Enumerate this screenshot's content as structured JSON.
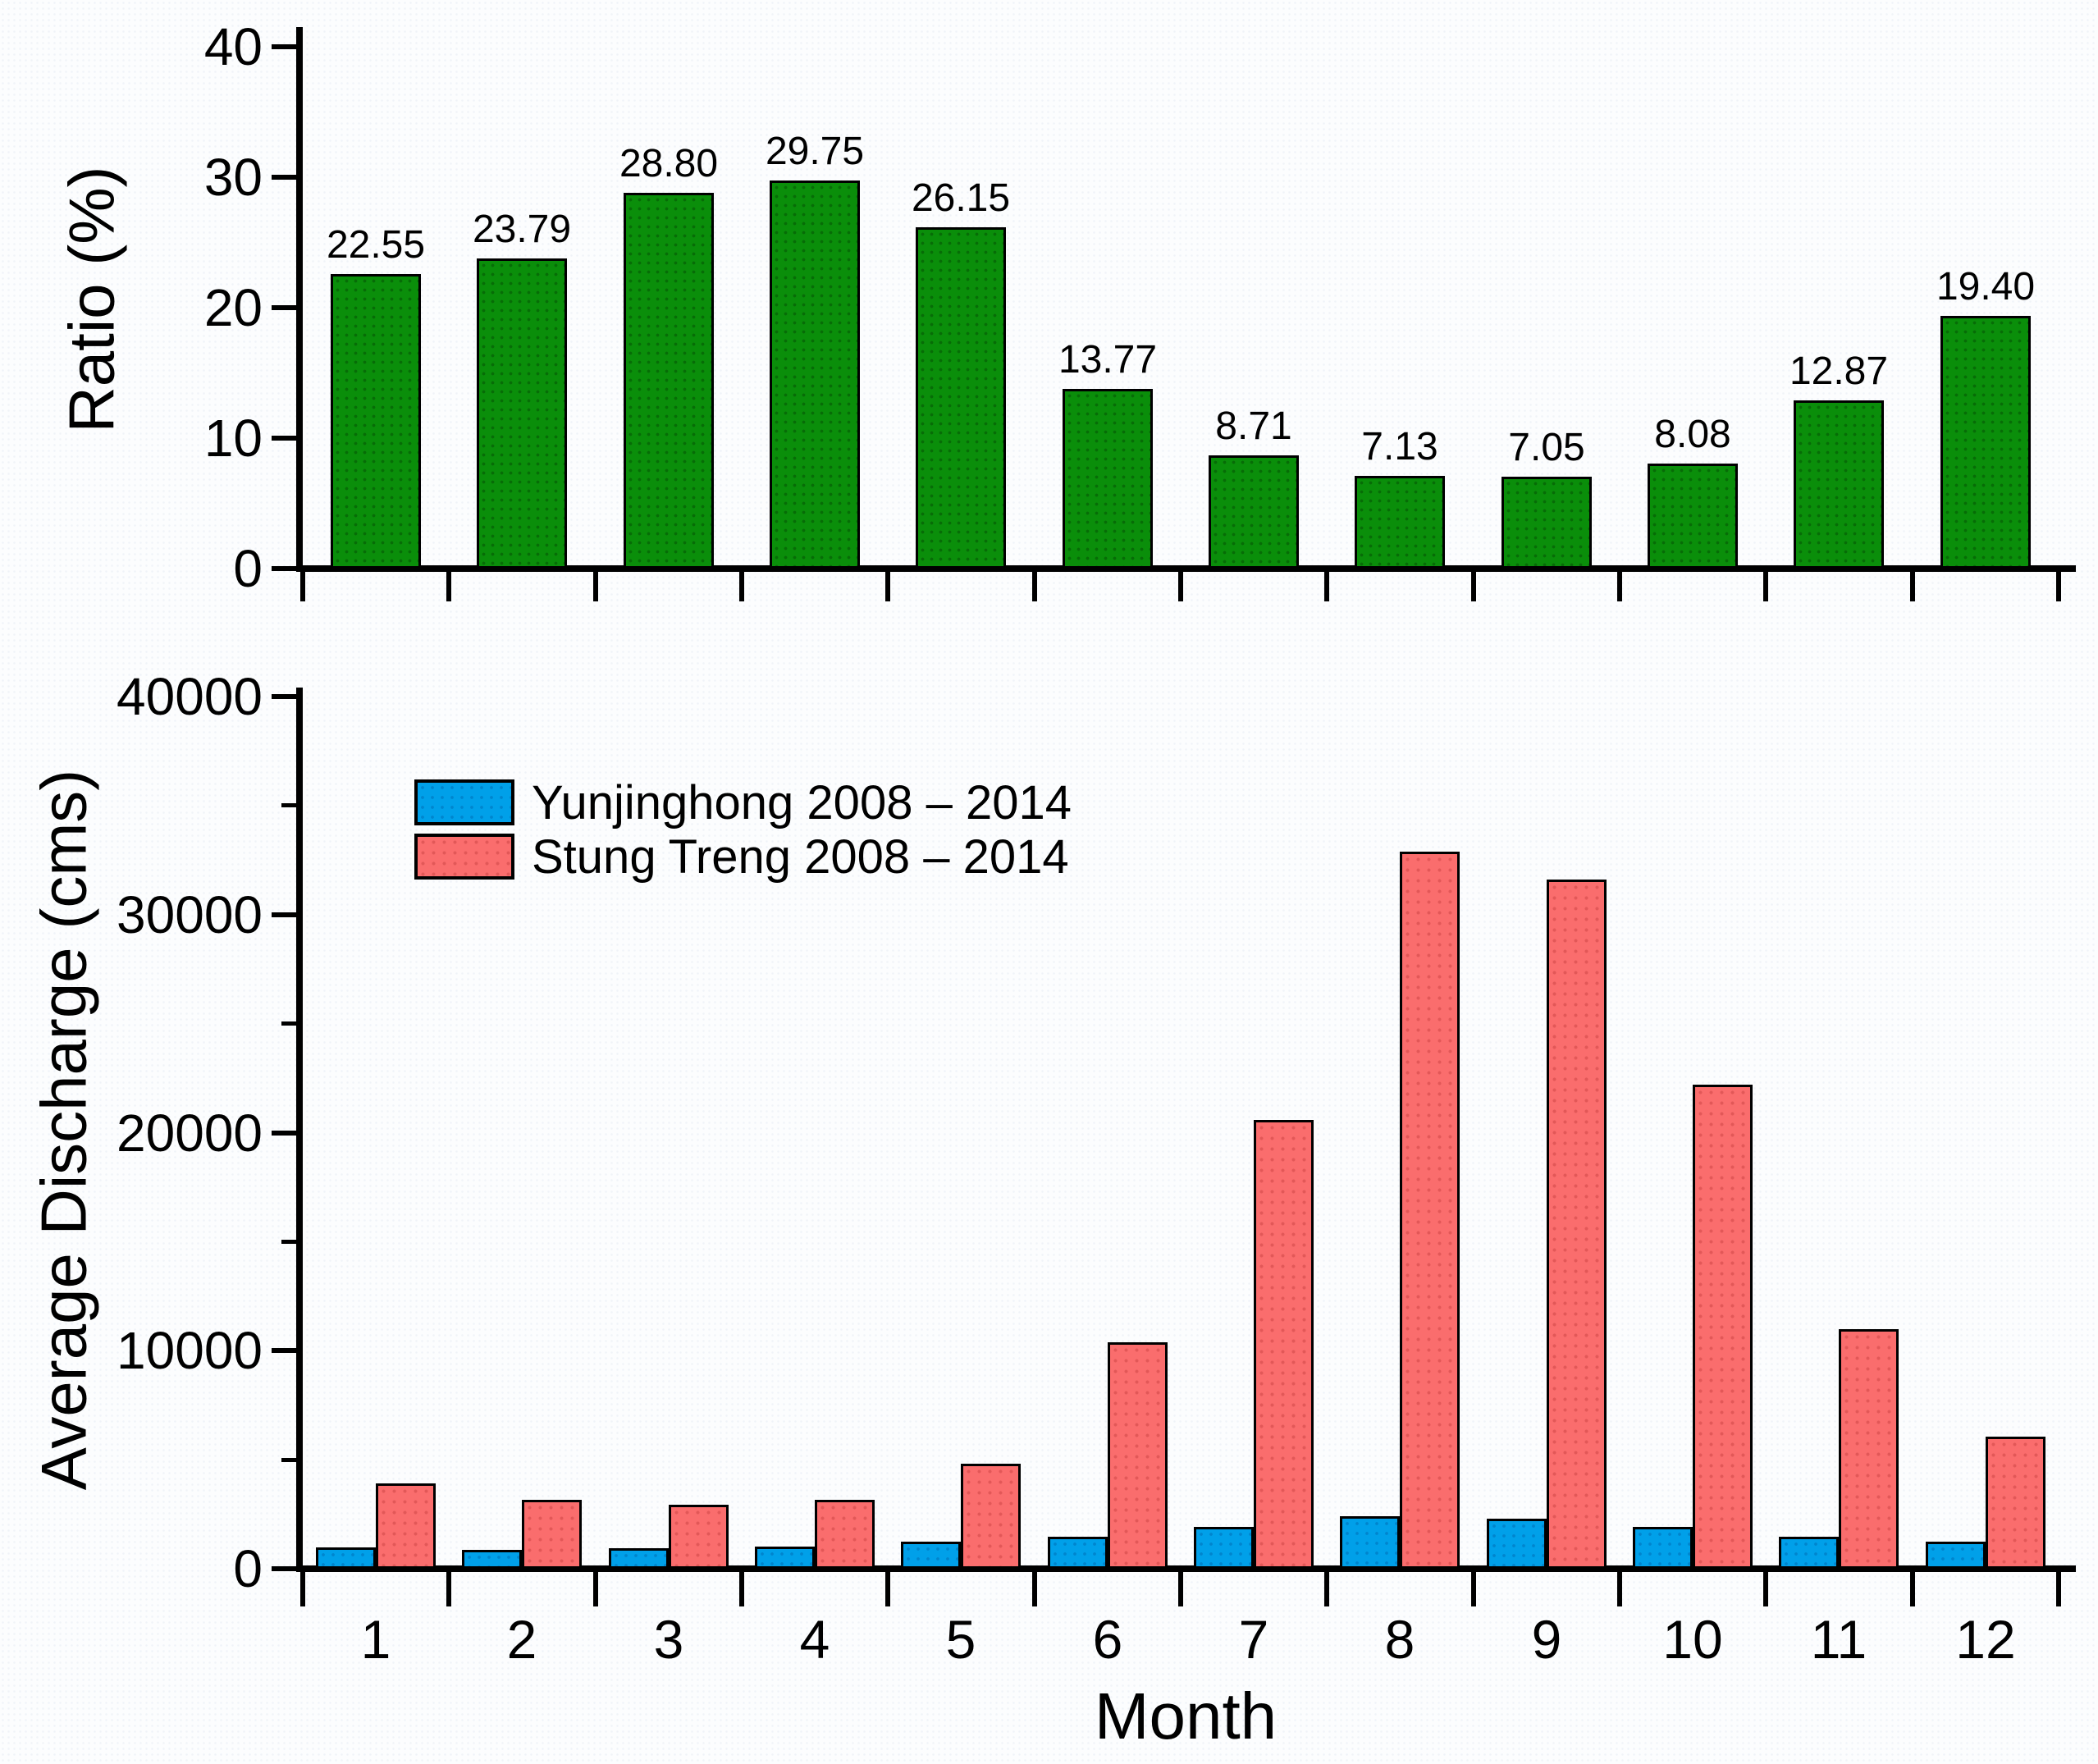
{
  "figure": {
    "background": "#fcfdfe",
    "axis_color": "#000000"
  },
  "chart_data": [
    {
      "type": "bar",
      "title": "",
      "ylabel": "Ratio (%)",
      "xlabel": "",
      "categories": [
        "1",
        "2",
        "3",
        "4",
        "5",
        "6",
        "7",
        "8",
        "9",
        "10",
        "11",
        "12"
      ],
      "values": [
        22.55,
        23.79,
        28.8,
        29.75,
        26.15,
        13.77,
        8.71,
        7.13,
        7.05,
        8.08,
        12.87,
        19.4
      ],
      "value_labels": [
        "22.55",
        "23.79",
        "28.80",
        "29.75",
        "26.15",
        "13.77",
        "8.71",
        "7.13",
        "7.05",
        "8.08",
        "12.87",
        "19.40"
      ],
      "ylim": [
        0,
        40
      ],
      "yticks": [
        0,
        10,
        20,
        30,
        40
      ],
      "bar_color": "#0a8e0a",
      "bar_border_color": "#000000",
      "grid": false,
      "x_tick_labels_shown": false,
      "legend_position": "none"
    },
    {
      "type": "grouped-bar",
      "title": "",
      "ylabel": "Average Discharge (cms)",
      "xlabel": "Month",
      "categories": [
        "1",
        "2",
        "3",
        "4",
        "5",
        "6",
        "7",
        "8",
        "9",
        "10",
        "11",
        "12"
      ],
      "series": [
        {
          "name": "Yunjinghong 2008 – 2014",
          "color": "#00a0e9",
          "values": [
            980,
            860,
            930,
            1020,
            1240,
            1480,
            1930,
            2390,
            2290,
            1930,
            1480,
            1240
          ]
        },
        {
          "name": "Stung Treng 2008 – 2014",
          "color": "#fa6d6d",
          "values": [
            3900,
            3150,
            2950,
            3150,
            4800,
            10400,
            20600,
            32900,
            31600,
            22200,
            11000,
            6050
          ]
        }
      ],
      "ylim": [
        0,
        40000
      ],
      "yticks": [
        0,
        10000,
        20000,
        30000,
        40000
      ],
      "minor_tick_step": 5000,
      "grid": false,
      "legend_position": "upper-left"
    }
  ]
}
